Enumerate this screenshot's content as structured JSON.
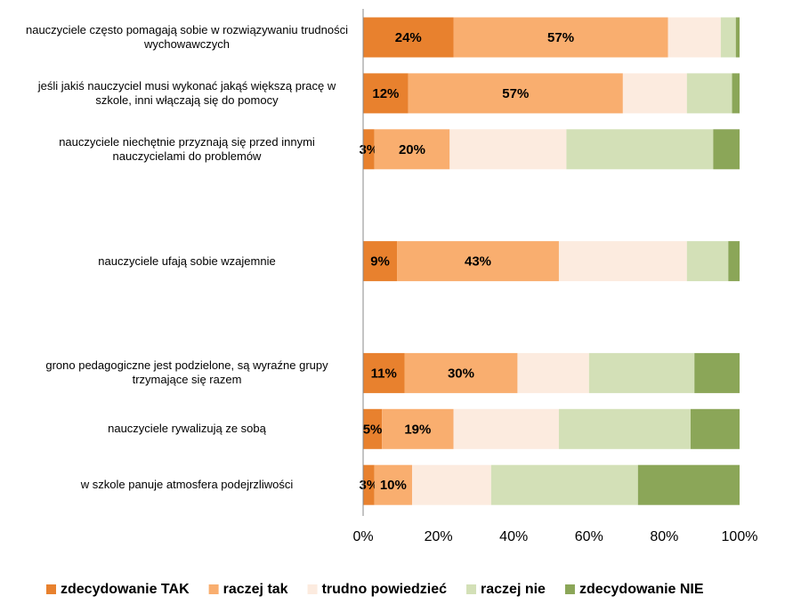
{
  "chart_data": {
    "type": "bar",
    "orientation": "horizontal",
    "stacked": true,
    "categories": [
      "nauczyciele często pomagają sobie w rozwiązywaniu trudności wychowawczych",
      "jeśli jakiś nauczyciel musi wykonać jakąś większą pracę w szkole, inni włączają się do pomocy",
      "nauczyciele niechętnie przyznają się przed innymi nauczycielami do problemów",
      null,
      "nauczyciele ufają sobie wzajemnie",
      null,
      "grono pedagogiczne jest podzielone, są wyraźne grupy trzymające się razem",
      "nauczyciele rywalizują ze sobą",
      "w szkole panuje atmosfera podejrzliwości"
    ],
    "series": [
      {
        "name": "zdecydowanie TAK",
        "color": "#e8812e",
        "values": [
          24,
          12,
          3,
          null,
          9,
          null,
          11,
          5,
          3
        ],
        "value_labels": [
          "24%",
          "12%",
          "3%",
          null,
          "9%",
          null,
          "11%",
          "5%",
          "3%"
        ]
      },
      {
        "name": "raczej tak",
        "color": "#f9ae6f",
        "values": [
          57,
          57,
          20,
          null,
          43,
          null,
          30,
          19,
          10
        ],
        "value_labels": [
          "57%",
          "57%",
          "20%",
          null,
          "43%",
          null,
          "30%",
          "19%",
          "10%"
        ]
      },
      {
        "name": "trudno powiedzieć",
        "color": "#fcebdf",
        "values": [
          14,
          17,
          31,
          null,
          34,
          null,
          19,
          28,
          21
        ]
      },
      {
        "name": "raczej nie",
        "color": "#d3e0b7",
        "values": [
          4,
          12,
          39,
          null,
          11,
          null,
          28,
          35,
          39
        ]
      },
      {
        "name": "zdecydowanie NIE",
        "color": "#8ba658",
        "values": [
          1,
          2,
          7,
          null,
          3,
          null,
          12,
          13,
          27
        ]
      }
    ],
    "xlim": [
      0,
      100
    ],
    "xticks": [
      {
        "value": 0,
        "label": "0%"
      },
      {
        "value": 20,
        "label": "20%"
      },
      {
        "value": 40,
        "label": "40%"
      },
      {
        "value": 60,
        "label": "60%"
      },
      {
        "value": 80,
        "label": "80%"
      },
      {
        "value": 100,
        "label": "100%"
      }
    ],
    "legend": "bottom"
  }
}
